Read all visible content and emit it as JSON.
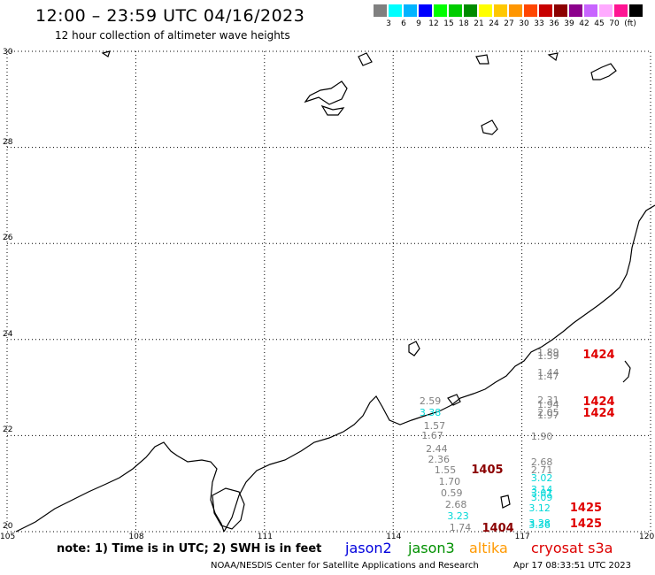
{
  "header": {
    "title": "12:00 – 23:59 UTC 04/16/2023",
    "subtitle": "12 hour collection of altimeter wave heights"
  },
  "colorbar": {
    "swatches": [
      "#808080",
      "#00ffff",
      "#00b4ff",
      "#0000ff",
      "#00ff00",
      "#00cd00",
      "#008c00",
      "#ffff00",
      "#ffc800",
      "#ff9600",
      "#ff4600",
      "#c80000",
      "#8c0000",
      "#8c008c",
      "#c864ff",
      "#ffaaff",
      "#ff1493",
      "#000000"
    ],
    "labels": [
      "3",
      "6",
      "9",
      "12",
      "15",
      "18",
      "21",
      "24",
      "27",
      "30",
      "33",
      "36",
      "39",
      "42",
      "45",
      "70"
    ],
    "unit": "(ft)"
  },
  "axes": {
    "lat_ticks": [
      "30",
      "28",
      "26",
      "24",
      "22",
      "20"
    ],
    "lon_ticks": [
      "105",
      "108",
      "111",
      "114",
      "117",
      "120"
    ]
  },
  "readings": [
    {
      "text": "1.89",
      "color": "#808080",
      "lon": 117.65,
      "lat": 23.72
    },
    {
      "text": "1.59",
      "color": "#808080",
      "lon": 117.65,
      "lat": 23.64
    },
    {
      "text": "1.44",
      "color": "#808080",
      "lon": 117.65,
      "lat": 23.3
    },
    {
      "text": "1.47",
      "color": "#808080",
      "lon": 117.65,
      "lat": 23.22
    },
    {
      "text": "2.31",
      "color": "#808080",
      "lon": 117.65,
      "lat": 22.72
    },
    {
      "text": "1.94",
      "color": "#808080",
      "lon": 117.65,
      "lat": 22.64
    },
    {
      "text": "2.05",
      "color": "#808080",
      "lon": 117.65,
      "lat": 22.47
    },
    {
      "text": "1.97",
      "color": "#808080",
      "lon": 117.65,
      "lat": 22.41
    },
    {
      "text": "1.90",
      "color": "#808080",
      "lon": 117.5,
      "lat": 21.97
    },
    {
      "text": "2.68",
      "color": "#808080",
      "lon": 117.5,
      "lat": 21.43
    },
    {
      "text": "2.71",
      "color": "#808080",
      "lon": 117.5,
      "lat": 21.27
    },
    {
      "text": "3.02",
      "color": "#00d8d8",
      "lon": 117.5,
      "lat": 21.1
    },
    {
      "text": "3.14",
      "color": "#00d8d8",
      "lon": 117.5,
      "lat": 20.87
    },
    {
      "text": "3.01",
      "color": "#00d8d8",
      "lon": 117.5,
      "lat": 20.8
    },
    {
      "text": "3.09",
      "color": "#00d8d8",
      "lon": 117.5,
      "lat": 20.7
    },
    {
      "text": "3.12",
      "color": "#00d8d8",
      "lon": 117.45,
      "lat": 20.47
    },
    {
      "text": "3.28",
      "color": "#00d8d8",
      "lon": 117.45,
      "lat": 20.17
    },
    {
      "text": "3.36",
      "color": "#00d8d8",
      "lon": 117.45,
      "lat": 20.12
    },
    {
      "text": "2.59",
      "color": "#808080",
      "lon": 114.9,
      "lat": 22.7
    },
    {
      "text": "3.38",
      "color": "#00d8d8",
      "lon": 114.9,
      "lat": 22.47
    },
    {
      "text": "1.57",
      "color": "#808080",
      "lon": 115.0,
      "lat": 22.2
    },
    {
      "text": "1.67",
      "color": "#808080",
      "lon": 114.95,
      "lat": 21.98
    },
    {
      "text": "2.44",
      "color": "#808080",
      "lon": 115.05,
      "lat": 21.72
    },
    {
      "text": "2.36",
      "color": "#808080",
      "lon": 115.1,
      "lat": 21.5
    },
    {
      "text": "1.55",
      "color": "#808080",
      "lon": 115.25,
      "lat": 21.27
    },
    {
      "text": "1.70",
      "color": "#808080",
      "lon": 115.35,
      "lat": 21.03
    },
    {
      "text": "0.59",
      "color": "#808080",
      "lon": 115.4,
      "lat": 20.8
    },
    {
      "text": "2.68",
      "color": "#808080",
      "lon": 115.5,
      "lat": 20.55
    },
    {
      "text": "3.23",
      "color": "#00d8d8",
      "lon": 115.55,
      "lat": 20.32
    },
    {
      "text": "1.74",
      "color": "#808080",
      "lon": 115.6,
      "lat": 20.07
    }
  ],
  "passes": [
    {
      "text": "1424",
      "color": "#e00000",
      "lon": 118.75,
      "lat": 23.67
    },
    {
      "text": "1424",
      "color": "#e00000",
      "lon": 118.75,
      "lat": 22.68
    },
    {
      "text": "1424",
      "color": "#e00000",
      "lon": 118.75,
      "lat": 22.45
    },
    {
      "text": "1405",
      "color": "#8b0000",
      "lon": 116.15,
      "lat": 21.27
    },
    {
      "text": "1425",
      "color": "#e00000",
      "lon": 118.45,
      "lat": 20.47
    },
    {
      "text": "1425",
      "color": "#e00000",
      "lon": 118.45,
      "lat": 20.15
    },
    {
      "text": "1404",
      "color": "#8b0000",
      "lon": 116.4,
      "lat": 20.06
    }
  ],
  "footer": {
    "note": "note: 1) Time is in UTC; 2) SWH is in feet",
    "satellites": [
      {
        "name": "jason2",
        "color": "#0000dd"
      },
      {
        "name": "jason3",
        "color": "#009000"
      },
      {
        "name": "altika",
        "color": "#ff9900"
      },
      {
        "name": "cryosat s3a",
        "color": "#dd0000"
      }
    ],
    "credit": "NOAA/NESDIS Center for Satellite Applications and Research",
    "timestamp": "Apr 17 08:33:51 UTC 2023"
  }
}
